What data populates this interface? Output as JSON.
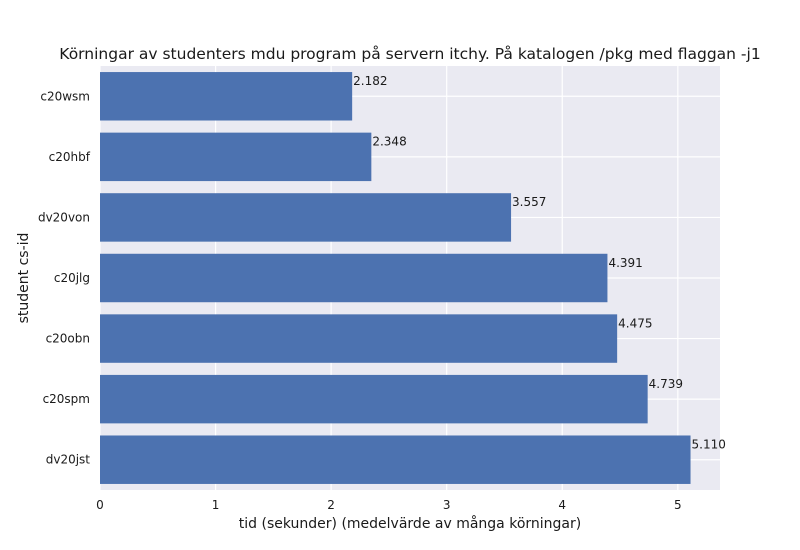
{
  "chart_data": {
    "type": "bar",
    "orientation": "horizontal",
    "title": "Körningar av studenters mdu program på servern itchy. På katalogen /pkg med flaggan -j1",
    "xlabel": "tid (sekunder) (medelvärde av många körningar)",
    "ylabel": "student cs-id",
    "categories": [
      "c20wsm",
      "c20hbf",
      "dv20von",
      "c20jlg",
      "c20obn",
      "c20spm",
      "dv20jst"
    ],
    "values": [
      2.182,
      2.348,
      3.557,
      4.391,
      4.475,
      4.739,
      5.11
    ],
    "value_labels": [
      "2.182",
      "2.348",
      "3.557",
      "4.391",
      "4.475",
      "4.739",
      "5.110"
    ],
    "xlim": [
      0,
      5.365
    ],
    "xticks": [
      0,
      1,
      2,
      3,
      4,
      5
    ],
    "xtick_labels": [
      "0",
      "1",
      "2",
      "3",
      "4",
      "5"
    ],
    "grid": true,
    "colors": {
      "bar": "#4c72b0",
      "background": "#eaeaf2",
      "grid": "#ffffff"
    }
  }
}
